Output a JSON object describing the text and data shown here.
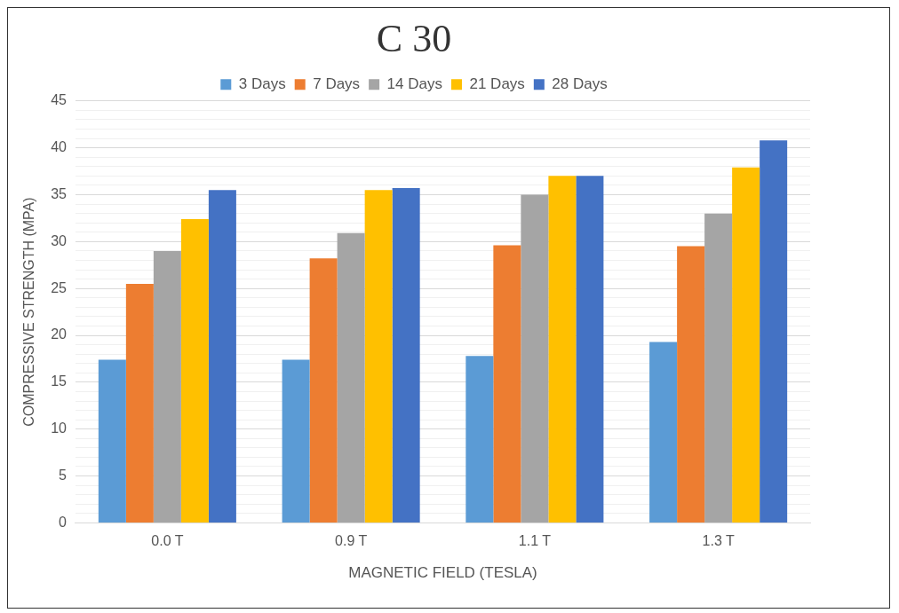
{
  "chart_data": {
    "type": "bar",
    "title": "C 30",
    "xlabel": "MAGNETIC FIELD (TESLA)",
    "ylabel": "COMPRESSIVE STRENGTH (MPA)",
    "categories": [
      "0.0 T",
      "0.9 T",
      "1.1 T",
      "1.3 T"
    ],
    "series": [
      {
        "name": "3 Days",
        "color": "#5b9bd5",
        "values": [
          17.4,
          17.4,
          17.8,
          19.3
        ]
      },
      {
        "name": "7 Days",
        "color": "#ed7d31",
        "values": [
          25.5,
          28.2,
          29.6,
          29.5
        ]
      },
      {
        "name": "14 Days",
        "color": "#a5a5a5",
        "values": [
          29,
          30.9,
          35,
          33
        ]
      },
      {
        "name": "21 Days",
        "color": "#ffc000",
        "values": [
          32.4,
          35.5,
          37,
          37.9
        ]
      },
      {
        "name": "28 Days",
        "color": "#4472c4",
        "values": [
          35.5,
          35.7,
          37,
          40.8
        ]
      }
    ],
    "ylim": [
      0,
      45
    ],
    "yticks": [
      0,
      {
        "value": 1,
        "label": null
      },
      {
        "value": 2,
        "label": null
      },
      {
        "value": 3,
        "label": null
      },
      {
        "value": 4,
        "label": null
      },
      5,
      {
        "value": 6,
        "label": null
      },
      {
        "value": 7,
        "label": null
      },
      {
        "value": 8,
        "label": null
      },
      {
        "value": 9,
        "label": null
      },
      10,
      {
        "value": 11,
        "label": null
      },
      {
        "value": 12,
        "label": null
      },
      {
        "value": 13,
        "label": null
      },
      {
        "value": 14,
        "label": null
      },
      15,
      {
        "value": 16,
        "label": null
      },
      {
        "value": 17,
        "label": null
      },
      {
        "value": 18,
        "label": null
      },
      {
        "value": 19,
        "label": null
      },
      20,
      {
        "value": 21,
        "label": null
      },
      {
        "value": 22,
        "label": null
      },
      {
        "value": 23,
        "label": null
      },
      {
        "value": 24,
        "label": null
      },
      25,
      {
        "value": 26,
        "label": null
      },
      {
        "value": 27,
        "label": null
      },
      {
        "value": 28,
        "label": null
      },
      {
        "value": 29,
        "label": null
      },
      30,
      {
        "value": 31,
        "label": null
      },
      {
        "value": 32,
        "label": null
      },
      {
        "value": 33,
        "label": null
      },
      {
        "value": 34,
        "label": null
      },
      35,
      {
        "value": 36,
        "label": null
      },
      {
        "value": 37,
        "label": null
      },
      {
        "value": 38,
        "label": null
      },
      {
        "value": 39,
        "label": null
      },
      40,
      {
        "value": 41,
        "label": null
      },
      {
        "value": 42,
        "label": null
      },
      {
        "value": 43,
        "label": null
      },
      {
        "value": 44,
        "label": null
      },
      45
    ],
    "grid": "y",
    "legend": "top"
  }
}
